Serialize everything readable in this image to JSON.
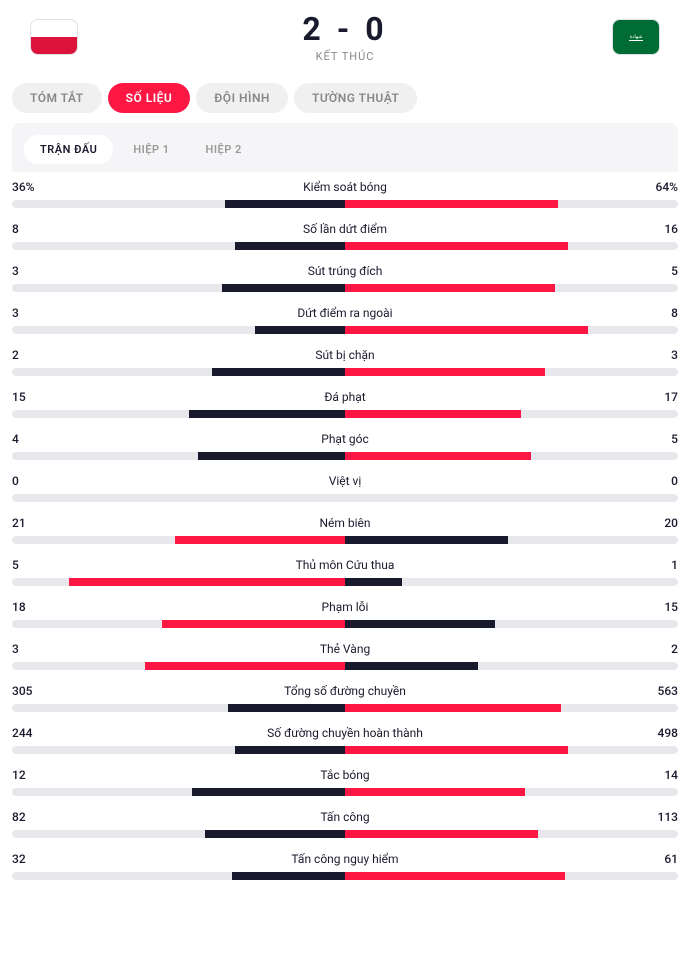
{
  "header": {
    "score": "2 - 0",
    "status": "KẾT THÚC",
    "home_flag": "poland",
    "away_flag": "saudi"
  },
  "tabs_main": [
    {
      "label": "TÓM TẮT",
      "active": false
    },
    {
      "label": "SỐ LIỆU",
      "active": true
    },
    {
      "label": "ĐỘI HÌNH",
      "active": false
    },
    {
      "label": "TƯỜNG THUẬT",
      "active": false
    }
  ],
  "tabs_sub": [
    {
      "label": "TRẬN ĐẤU",
      "active": true
    },
    {
      "label": "HIỆP 1",
      "active": false
    },
    {
      "label": "HIỆP 2",
      "active": false
    }
  ],
  "colors": {
    "accent": "#ff1744",
    "dark": "#1a1a2e",
    "bar_bg": "#e8e8ec",
    "panel_bg": "#f5f5f7"
  },
  "stats": [
    {
      "name": "Kiểm soát bóng",
      "home": "36%",
      "away": "64%",
      "home_pct": 36,
      "away_pct": 64,
      "winner": "away"
    },
    {
      "name": "Số lần dứt điểm",
      "home": "8",
      "away": "16",
      "home_pct": 33,
      "away_pct": 67,
      "winner": "away"
    },
    {
      "name": "Sút trúng đích",
      "home": "3",
      "away": "5",
      "home_pct": 37,
      "away_pct": 63,
      "winner": "away"
    },
    {
      "name": "Dứt điểm ra ngoài",
      "home": "3",
      "away": "8",
      "home_pct": 27,
      "away_pct": 73,
      "winner": "away"
    },
    {
      "name": "Sút bị chặn",
      "home": "2",
      "away": "3",
      "home_pct": 40,
      "away_pct": 60,
      "winner": "away"
    },
    {
      "name": "Đá phạt",
      "home": "15",
      "away": "17",
      "home_pct": 47,
      "away_pct": 53,
      "winner": "away"
    },
    {
      "name": "Phạt góc",
      "home": "4",
      "away": "5",
      "home_pct": 44,
      "away_pct": 56,
      "winner": "away"
    },
    {
      "name": "Việt vị",
      "home": "0",
      "away": "0",
      "home_pct": 0,
      "away_pct": 0,
      "winner": "none"
    },
    {
      "name": "Ném biên",
      "home": "21",
      "away": "20",
      "home_pct": 51,
      "away_pct": 49,
      "winner": "home"
    },
    {
      "name": "Thủ môn Cứu thua",
      "home": "5",
      "away": "1",
      "home_pct": 83,
      "away_pct": 17,
      "winner": "home"
    },
    {
      "name": "Phạm lỗi",
      "home": "18",
      "away": "15",
      "home_pct": 55,
      "away_pct": 45,
      "winner": "home"
    },
    {
      "name": "Thẻ Vàng",
      "home": "3",
      "away": "2",
      "home_pct": 60,
      "away_pct": 40,
      "winner": "home"
    },
    {
      "name": "Tổng số đường chuyền",
      "home": "305",
      "away": "563",
      "home_pct": 35,
      "away_pct": 65,
      "winner": "away"
    },
    {
      "name": "Số đường chuyền hoàn thành",
      "home": "244",
      "away": "498",
      "home_pct": 33,
      "away_pct": 67,
      "winner": "away"
    },
    {
      "name": "Tắc bóng",
      "home": "12",
      "away": "14",
      "home_pct": 46,
      "away_pct": 54,
      "winner": "away"
    },
    {
      "name": "Tấn công",
      "home": "82",
      "away": "113",
      "home_pct": 42,
      "away_pct": 58,
      "winner": "away"
    },
    {
      "name": "Tấn công nguy hiểm",
      "home": "32",
      "away": "61",
      "home_pct": 34,
      "away_pct": 66,
      "winner": "away"
    }
  ]
}
